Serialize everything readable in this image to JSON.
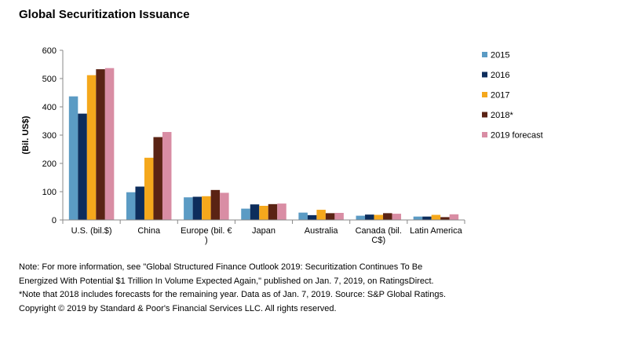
{
  "chart_data": {
    "type": "bar",
    "title": "Global Securitization Issuance",
    "ylabel": "(Bil. US$)",
    "ylim": [
      0,
      600
    ],
    "yticks": [
      0,
      100,
      200,
      300,
      400,
      500,
      600
    ],
    "grid": false,
    "legend_position": "right",
    "categories": [
      "U.S. (bil.$)",
      "China",
      "Europe (bil. €)",
      "Japan",
      "Australia",
      "Canada (bil. C$)",
      "Latin America"
    ],
    "category_lines": [
      [
        "U.S. (bil.$)"
      ],
      [
        "China"
      ],
      [
        "Europe (bil. €",
        ")"
      ],
      [
        "Japan"
      ],
      [
        "Australia"
      ],
      [
        "Canada (bil.",
        "C$)"
      ],
      [
        "Latin America"
      ]
    ],
    "series": [
      {
        "name": "2015",
        "color": "#5b9bc4",
        "values": [
          437,
          98,
          80,
          40,
          26,
          15,
          12
        ]
      },
      {
        "name": "2016",
        "color": "#0d2d5c",
        "values": [
          376,
          118,
          82,
          55,
          17,
          19,
          12
        ]
      },
      {
        "name": "2017",
        "color": "#f5a81c",
        "values": [
          512,
          220,
          84,
          50,
          36,
          18,
          18
        ]
      },
      {
        "name": "2018*",
        "color": "#5a2314",
        "values": [
          533,
          293,
          106,
          56,
          24,
          24,
          10
        ]
      },
      {
        "name": "2019 forecast",
        "color": "#d98da4",
        "values": [
          537,
          311,
          96,
          58,
          25,
          22,
          20
        ]
      }
    ]
  },
  "footnote": {
    "lines": [
      "Note: For more information, see \"Global Structured Finance Outlook 2019: Securitization Continues To Be",
      "Energized With Potential $1 Trillion In Volume Expected Again,\" published on Jan. 7, 2019, on RatingsDirect.",
      "*Note that 2018 includes forecasts for the remaining year. Data as of Jan. 7, 2019. Source: S&P Global Ratings.",
      "Copyright © 2019 by Standard & Poor's Financial Services LLC. All rights reserved."
    ]
  }
}
